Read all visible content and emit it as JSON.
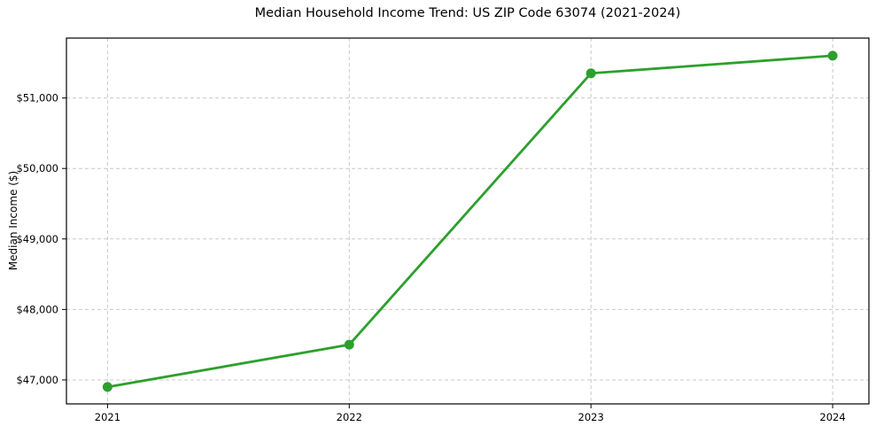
{
  "chart_data": {
    "type": "line",
    "title": "Median Household Income Trend: US ZIP Code 63074 (2021-2024)",
    "xlabel": "",
    "ylabel": "Median Income ($)",
    "x": [
      2021,
      2022,
      2023,
      2024
    ],
    "series": [
      {
        "name": "Median household income",
        "values": [
          46900,
          47500,
          51350,
          51600
        ]
      }
    ],
    "xticks": {
      "values": [
        2021,
        2022,
        2023,
        2024
      ],
      "labels": [
        "2021",
        "2022",
        "2023",
        "2024"
      ]
    },
    "yticks": {
      "values": [
        47000,
        48000,
        49000,
        50000,
        51000
      ],
      "labels": [
        "$47,000",
        "$48,000",
        "$49,000",
        "$50,000",
        "$51,000"
      ]
    },
    "xlim": [
      2020.83,
      2024.15
    ],
    "ylim": [
      46660,
      51850
    ],
    "grid": "both-dashed",
    "legend": "none",
    "marker": "circle",
    "colors": {
      "line": "#2ca02c",
      "marker": "#2ca02c",
      "grid": "#c9c9c9",
      "spine": "#000000",
      "text": "#000000",
      "background": "#ffffff"
    }
  }
}
